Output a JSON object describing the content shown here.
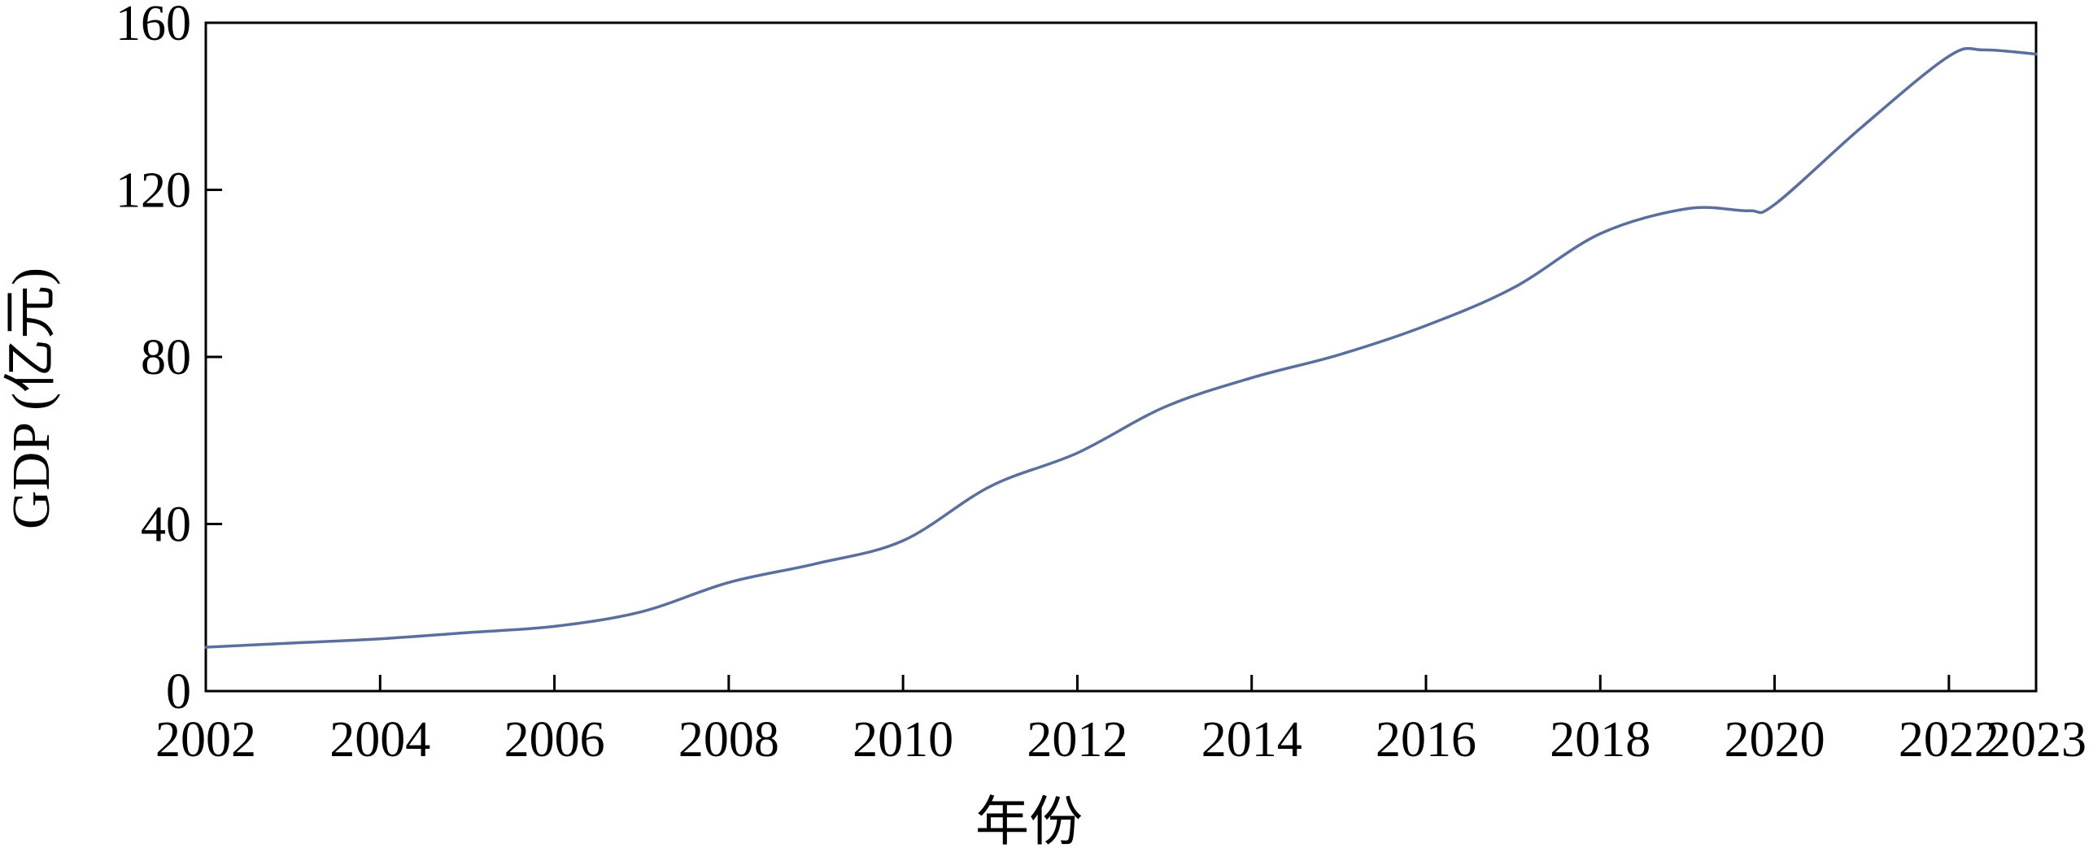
{
  "chart_data": {
    "type": "line",
    "title": "",
    "xlabel": "年份",
    "ylabel": "GDP (亿元)",
    "xlim": [
      2002,
      2023
    ],
    "ylim": [
      0,
      160
    ],
    "x_ticks": [
      2002,
      2004,
      2006,
      2008,
      2010,
      2012,
      2014,
      2016,
      2018,
      2020,
      2022,
      2023
    ],
    "y_ticks": [
      0,
      40,
      80,
      120,
      160
    ],
    "grid": false,
    "legend": "none",
    "series": [
      {
        "color": "#5a6f9e",
        "x": [
          2002,
          2003,
          2004,
          2005,
          2006,
          2007,
          2008,
          2009,
          2010,
          2011,
          2012,
          2013,
          2014,
          2015,
          2016,
          2017,
          2018,
          2019,
          2019.7,
          2020,
          2021,
          2022,
          2022.4,
          2023
        ],
        "y": [
          10.5,
          11.5,
          12.5,
          14,
          15.5,
          19,
          26,
          30.5,
          36,
          49,
          57,
          68,
          75,
          80.5,
          87.5,
          96.5,
          109.5,
          115.5,
          115,
          116.5,
          135,
          152,
          153.5,
          152.5
        ]
      }
    ]
  }
}
